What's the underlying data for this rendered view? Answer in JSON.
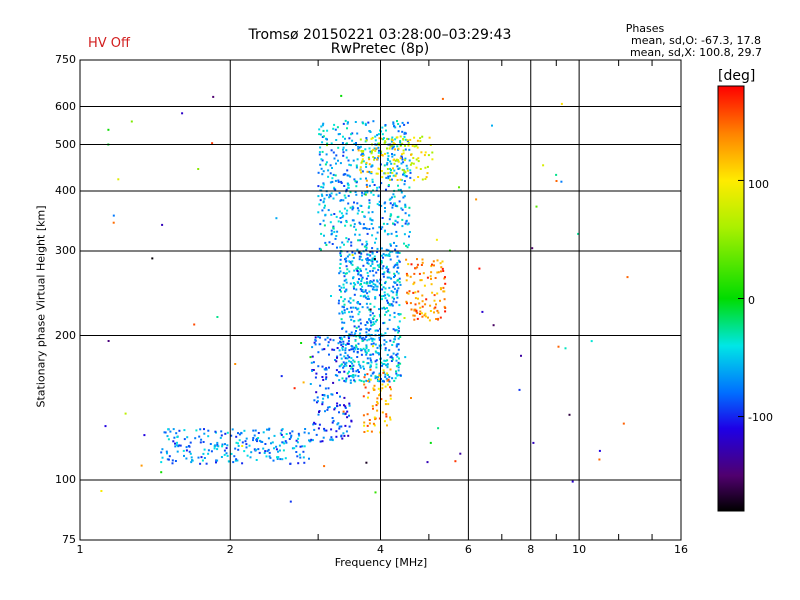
{
  "header": {
    "title": "Tromsø 20150221 03:28:00–03:29:43",
    "subtitle": "RwPretec (8p)",
    "hv_status": "HV Off"
  },
  "stats": {
    "heading": "Phases",
    "line_o": "mean, sd,O: -67.3, 17.8",
    "line_x": "mean, sd,X: 100.8, 29.7"
  },
  "colorbar": {
    "unit_label": "[deg]",
    "ticks": [
      "100",
      "0",
      "-100"
    ]
  },
  "chart_data": {
    "type": "scatter",
    "xlabel": "Frequency [MHz]",
    "ylabel": "Stationary phase Virtual Height [km]",
    "xscale": "log",
    "yscale": "log",
    "xlim": [
      1,
      16
    ],
    "ylim": [
      75,
      750
    ],
    "x_ticks": [
      "1",
      "2",
      "4",
      "6",
      "8",
      "10",
      "16"
    ],
    "y_ticks": [
      "750",
      "600",
      "500",
      "400",
      "300",
      "200",
      "100",
      "75"
    ],
    "grid": true,
    "colorscale": "rainbow phase, -180 (black) to 180 (red)",
    "color_unit": "deg",
    "point_clusters": [
      {
        "name": "low-frequency trace",
        "x_range": [
          1.45,
          2.9
        ],
        "y_range": [
          108,
          128
        ],
        "phase": -70
      },
      {
        "name": "o-mode rise",
        "x_range": [
          2.9,
          3.5
        ],
        "y_range": [
          120,
          200
        ],
        "phase": -90
      },
      {
        "name": "o-mode main",
        "x_range": [
          3.3,
          4.4
        ],
        "y_range": [
          160,
          300
        ],
        "phase": -60
      },
      {
        "name": "o-mode upper",
        "x_range": [
          3.0,
          4.6
        ],
        "y_range": [
          300,
          560
        ],
        "phase": -60
      },
      {
        "name": "x-mode lower",
        "x_range": [
          3.7,
          4.2
        ],
        "y_range": [
          125,
          170
        ],
        "phase": 130
      },
      {
        "name": "x-mode mid",
        "x_range": [
          4.5,
          5.4
        ],
        "y_range": [
          215,
          290
        ],
        "phase": 140
      },
      {
        "name": "x-mode upper",
        "x_range": [
          3.6,
          5.1
        ],
        "y_range": [
          420,
          520
        ],
        "phase": 90
      },
      {
        "name": "scattered points",
        "x_range": [
          1.1,
          13
        ],
        "y_range": [
          90,
          650
        ],
        "phase": 0
      }
    ]
  }
}
